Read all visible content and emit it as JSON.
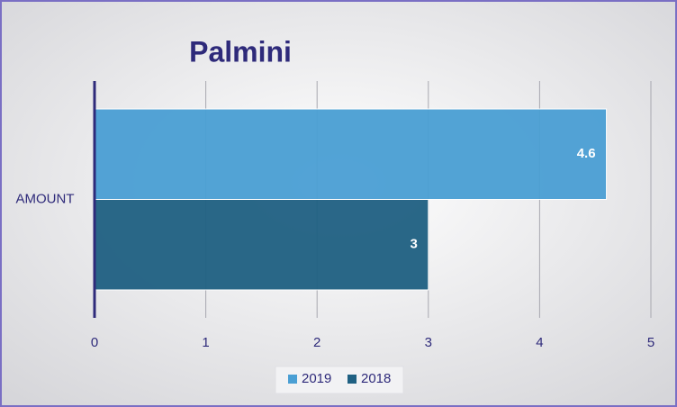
{
  "chart_data": {
    "type": "hbar",
    "title": "Palmini",
    "categories": [
      "AMOUNT"
    ],
    "series": [
      {
        "name": "2019",
        "color": "#4a9fd4",
        "values": [
          4.6
        ]
      },
      {
        "name": "2018",
        "color": "#1f6082",
        "values": [
          3
        ]
      }
    ],
    "xlim": [
      0,
      5
    ],
    "xticks": [
      0,
      1,
      2,
      3,
      4,
      5
    ],
    "grid": true,
    "legend": "bottom"
  }
}
